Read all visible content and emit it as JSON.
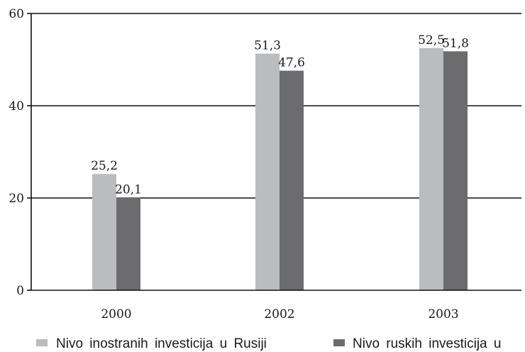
{
  "chart_data": {
    "type": "bar",
    "categories": [
      "2000",
      "2002",
      "2003"
    ],
    "series": [
      {
        "name": "Nivo inostranih investicija u Rusiji",
        "values": [
          25.2,
          51.3,
          52.5
        ],
        "color": "#bbbcbe",
        "labels": [
          "25,2",
          "51,3",
          "52,5"
        ]
      },
      {
        "name": "Nivo ruskih investicija u",
        "values": [
          20.1,
          47.6,
          51.8
        ],
        "color": "#6c6c6e",
        "labels": [
          "20,1",
          "47,6",
          "51,8"
        ]
      }
    ],
    "ylim": [
      0,
      60
    ],
    "yticks": [
      0,
      20,
      40,
      60
    ],
    "grid": true,
    "legend_position": "bottom",
    "title": "",
    "xlabel": "",
    "ylabel": ""
  }
}
